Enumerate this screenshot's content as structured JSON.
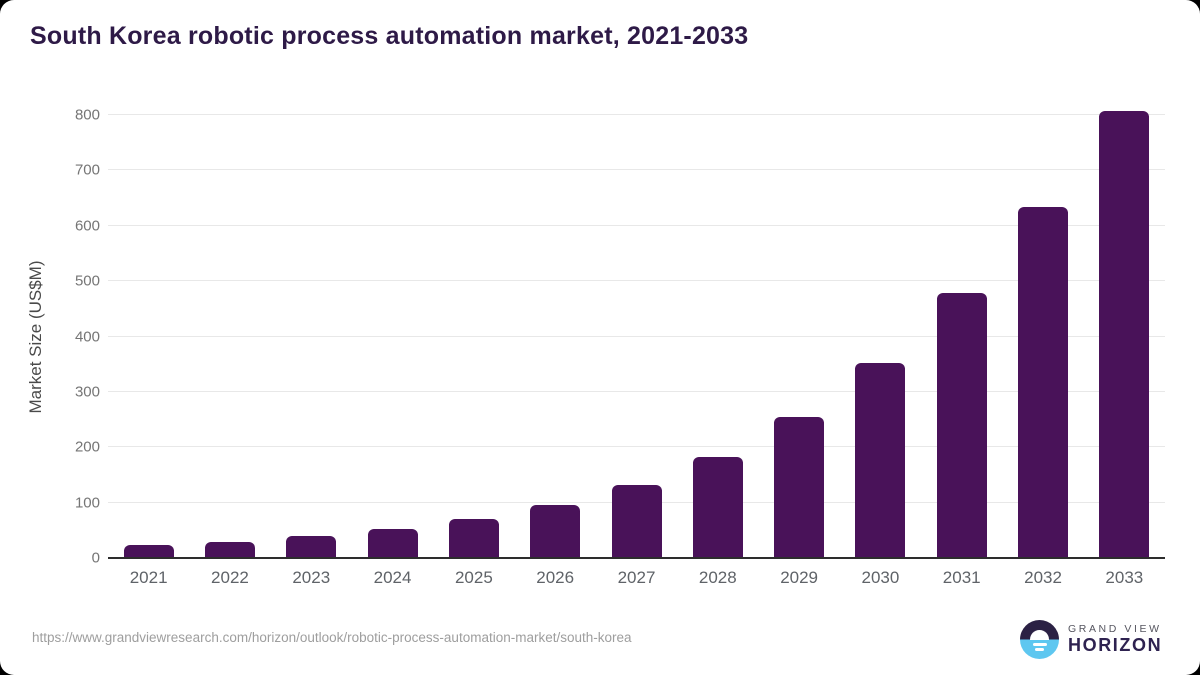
{
  "header": {
    "title": "South Korea robotic process automation market, 2021-2033"
  },
  "footer": {
    "source_url": "https://www.grandviewresearch.com/horizon/outlook/robotic-process-automation-market/south-korea",
    "logo": {
      "top_text": "GRAND VIEW",
      "bottom_text": "HORIZON"
    }
  },
  "colors": {
    "bar": "#491259",
    "title": "#2e1a47",
    "gridline": "#e8e8e8",
    "axis_line": "#2d2d2d",
    "tick_label": "#757575",
    "x_label": "#5f6368",
    "url_text": "#9e9e9e",
    "logo_dark": "#2b2144",
    "logo_blue": "#5ec7f0"
  },
  "chart_data": {
    "type": "bar",
    "title": "South Korea robotic process automation market, 2021-2033",
    "categories": [
      "2021",
      "2022",
      "2023",
      "2024",
      "2025",
      "2026",
      "2027",
      "2028",
      "2029",
      "2030",
      "2031",
      "2032",
      "2033"
    ],
    "values": [
      23,
      29,
      40,
      52,
      70,
      95,
      131,
      182,
      254,
      353,
      478,
      634,
      808
    ],
    "xlabel": "",
    "ylabel": "Market Size (US$M)",
    "ylim": [
      0,
      800
    ],
    "ytick_interval": 100,
    "grid": true,
    "legend": "none",
    "bar_color": "#491259"
  }
}
